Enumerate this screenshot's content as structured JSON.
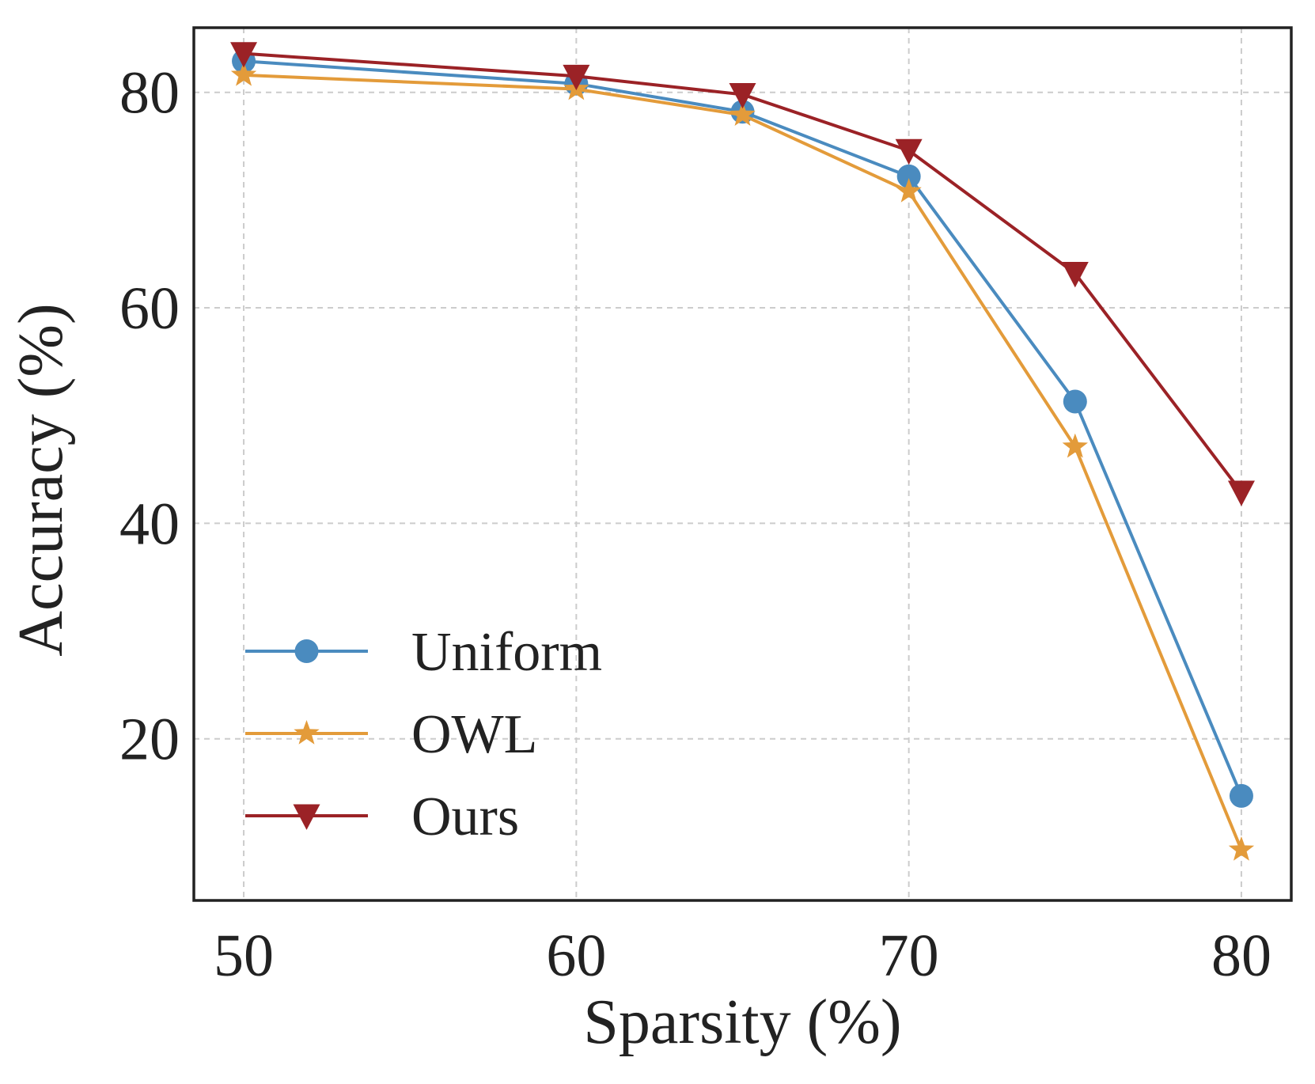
{
  "chart_data": {
    "type": "line",
    "title": "",
    "xlabel": "Sparsity (%)",
    "ylabel": "Accuracy (%)",
    "x": [
      50,
      60,
      65,
      70,
      75,
      80
    ],
    "xticks": [
      50,
      60,
      70,
      80
    ],
    "yticks": [
      20,
      40,
      60,
      80
    ],
    "xlim": [
      48.5,
      81.5
    ],
    "ylim": [
      5,
      86
    ],
    "grid": true,
    "legend_position": "lower-left",
    "series": [
      {
        "name": "Uniform",
        "values": [
          82.9,
          80.8,
          78.2,
          72.2,
          51.3,
          14.7
        ],
        "color": "#4a8bbf",
        "marker": "circle"
      },
      {
        "name": "OWL",
        "values": [
          81.6,
          80.3,
          77.9,
          70.8,
          47.1,
          9.7
        ],
        "color": "#e39b3a",
        "marker": "star"
      },
      {
        "name": "Ours",
        "values": [
          83.6,
          81.5,
          79.8,
          74.6,
          63.2,
          42.9
        ],
        "color": "#9b2226",
        "marker": "triangle-down"
      }
    ]
  }
}
